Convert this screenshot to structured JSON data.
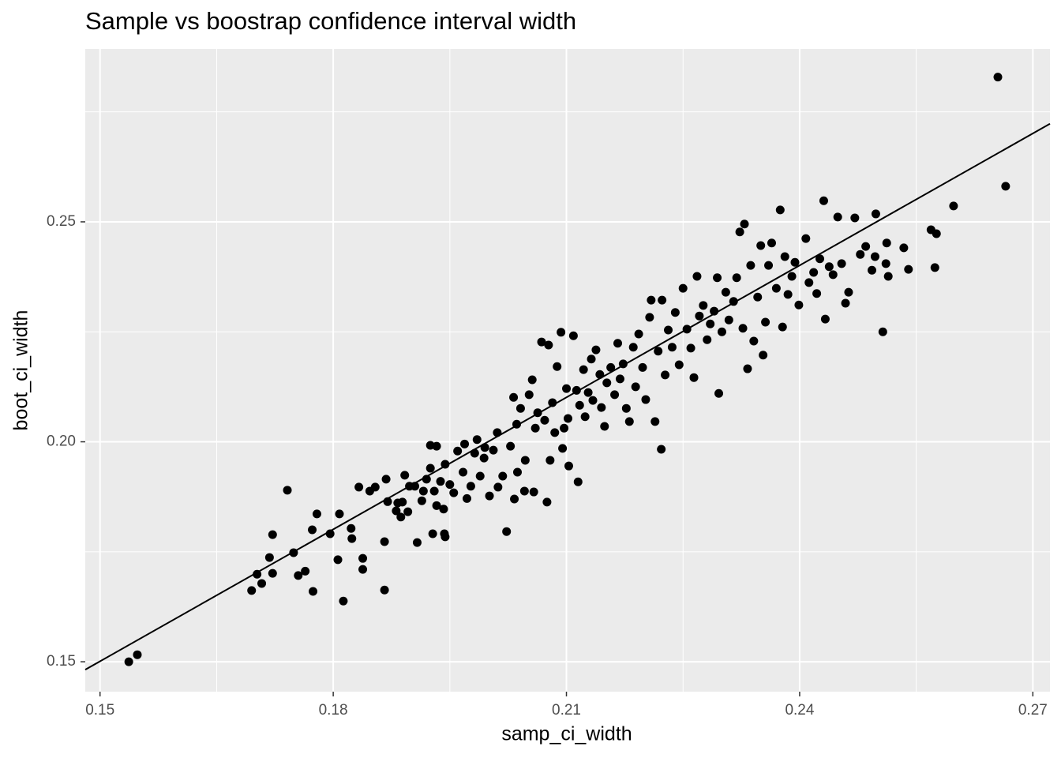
{
  "chart_data": {
    "type": "scatter",
    "title": "Sample vs boostrap confidence interval width",
    "x_label": "samp_ci_width",
    "y_label": "boot_ci_width",
    "x": [
      0.1537,
      0.1548,
      0.1695,
      0.1702,
      0.1708,
      0.1718,
      0.1722,
      0.1722,
      0.1741,
      0.1749,
      0.1755,
      0.1764,
      0.1773,
      0.1774,
      0.1779,
      0.1796,
      0.1806,
      0.1808,
      0.1813,
      0.1823,
      0.1824,
      0.1833,
      0.1838,
      0.1838,
      0.1847,
      0.1854,
      0.1866,
      0.1866,
      0.1868,
      0.187,
      0.1881,
      0.1883,
      0.1887,
      0.1889,
      0.1892,
      0.1896,
      0.1898,
      0.1905,
      0.1908,
      0.1914,
      0.1916,
      0.192,
      0.1925,
      0.1925,
      0.1928,
      0.193,
      0.1933,
      0.1933,
      0.1938,
      0.1942,
      0.1943,
      0.1944,
      0.1944,
      0.195,
      0.1955,
      0.196,
      0.1967,
      0.1969,
      0.1972,
      0.1977,
      0.1982,
      0.1985,
      0.1989,
      0.1994,
      0.1995,
      0.2001,
      0.2006,
      0.2011,
      0.2012,
      0.2018,
      0.2023,
      0.2028,
      0.2032,
      0.2033,
      0.2036,
      0.2037,
      0.2041,
      0.2046,
      0.2047,
      0.2052,
      0.2056,
      0.2058,
      0.206,
      0.2063,
      0.2068,
      0.2072,
      0.2075,
      0.2077,
      0.2079,
      0.2082,
      0.2085,
      0.2088,
      0.2093,
      0.2095,
      0.2097,
      0.21,
      0.2102,
      0.2103,
      0.2109,
      0.2113,
      0.2115,
      0.2117,
      0.2122,
      0.2124,
      0.2128,
      0.2132,
      0.2134,
      0.2138,
      0.2143,
      0.2145,
      0.2149,
      0.2152,
      0.2157,
      0.2162,
      0.2166,
      0.2169,
      0.2173,
      0.2177,
      0.2181,
      0.2186,
      0.2189,
      0.2193,
      0.2198,
      0.2202,
      0.2207,
      0.2209,
      0.2214,
      0.2218,
      0.2222,
      0.2223,
      0.2227,
      0.2231,
      0.2236,
      0.224,
      0.2245,
      0.225,
      0.2255,
      0.226,
      0.2264,
      0.2268,
      0.2271,
      0.2276,
      0.2281,
      0.2285,
      0.229,
      0.2294,
      0.2296,
      0.23,
      0.2305,
      0.2309,
      0.2315,
      0.2319,
      0.2323,
      0.2327,
      0.2329,
      0.2333,
      0.2337,
      0.2341,
      0.2346,
      0.235,
      0.2353,
      0.2356,
      0.236,
      0.2364,
      0.237,
      0.2375,
      0.2378,
      0.2381,
      0.2385,
      0.239,
      0.2394,
      0.2399,
      0.2408,
      0.2412,
      0.2418,
      0.2422,
      0.2426,
      0.2431,
      0.2433,
      0.2438,
      0.2443,
      0.2449,
      0.2454,
      0.2459,
      0.2463,
      0.2471,
      0.2478,
      0.2485,
      0.2493,
      0.2497,
      0.2498,
      0.2507,
      0.2511,
      0.2512,
      0.2514,
      0.2534,
      0.254,
      0.2569,
      0.2574,
      0.2576,
      0.2598,
      0.2655,
      0.2665
    ],
    "values": [
      0.15,
      0.1516,
      0.1662,
      0.1699,
      0.1678,
      0.1737,
      0.1789,
      0.1701,
      0.189,
      0.1748,
      0.1696,
      0.1706,
      0.18,
      0.166,
      0.1836,
      0.1791,
      0.1732,
      0.1836,
      0.1638,
      0.1803,
      0.178,
      0.1897,
      0.1735,
      0.171,
      0.1888,
      0.1897,
      0.1663,
      0.1773,
      0.1915,
      0.1864,
      0.1843,
      0.1861,
      0.1829,
      0.1863,
      0.1924,
      0.1841,
      0.1899,
      0.1899,
      0.1771,
      0.1866,
      0.1888,
      0.1915,
      0.194,
      0.1992,
      0.1791,
      0.1888,
      0.1855,
      0.199,
      0.191,
      0.1847,
      0.1791,
      0.1784,
      0.1949,
      0.1903,
      0.1884,
      0.1979,
      0.1931,
      0.1995,
      0.1871,
      0.1899,
      0.1974,
      0.2005,
      0.1922,
      0.1963,
      0.1987,
      0.1877,
      0.1981,
      0.2021,
      0.1897,
      0.1922,
      0.1796,
      0.199,
      0.2101,
      0.187,
      0.204,
      0.1931,
      0.2076,
      0.1888,
      0.1958,
      0.2107,
      0.2141,
      0.1886,
      0.2031,
      0.2066,
      0.2227,
      0.2049,
      0.1863,
      0.222,
      0.1958,
      0.2089,
      0.2021,
      0.2171,
      0.2249,
      0.1985,
      0.2031,
      0.2121,
      0.2053,
      0.1945,
      0.2241,
      0.2117,
      0.1909,
      0.2083,
      0.2164,
      0.2057,
      0.2112,
      0.2188,
      0.2094,
      0.2209,
      0.2153,
      0.2078,
      0.2035,
      0.2134,
      0.2169,
      0.2107,
      0.2224,
      0.2143,
      0.2177,
      0.2076,
      0.2046,
      0.2215,
      0.2125,
      0.2245,
      0.2169,
      0.2096,
      0.2283,
      0.2322,
      0.2046,
      0.2206,
      0.1983,
      0.2322,
      0.2152,
      0.2254,
      0.2215,
      0.2294,
      0.2175,
      0.2349,
      0.2256,
      0.2213,
      0.2146,
      0.2376,
      0.2286,
      0.231,
      0.2232,
      0.2268,
      0.2297,
      0.2373,
      0.211,
      0.225,
      0.234,
      0.2277,
      0.2319,
      0.2373,
      0.2477,
      0.2258,
      0.2495,
      0.2166,
      0.2401,
      0.2229,
      0.2329,
      0.2446,
      0.2197,
      0.2272,
      0.2401,
      0.2452,
      0.2349,
      0.2527,
      0.2261,
      0.2421,
      0.2335,
      0.2376,
      0.2408,
      0.2311,
      0.2462,
      0.2362,
      0.2385,
      0.2337,
      0.2416,
      0.2548,
      0.2279,
      0.2398,
      0.238,
      0.2511,
      0.2405,
      0.2315,
      0.234,
      0.2509,
      0.2426,
      0.2444,
      0.239,
      0.2421,
      0.2518,
      0.225,
      0.2405,
      0.2452,
      0.2376,
      0.2441,
      0.2392,
      0.2482,
      0.2396,
      0.2473,
      0.2536,
      0.2829,
      0.2581
    ],
    "color": "#000000",
    "line": {
      "x": [
        0.1481,
        0.2722
      ],
      "values": [
        0.1482,
        0.2723
      ],
      "color": "#000000"
    },
    "xlim": [
      0.1481,
      0.2722
    ],
    "ylim": [
      0.1432,
      0.2893
    ],
    "xticks": [
      0.15,
      0.18,
      0.21,
      0.24,
      0.27
    ],
    "yticks": [
      0.15,
      {
        "value": 0.2,
        "label": "0.20"
      },
      0.25
    ],
    "grid": true,
    "minor_grid": true
  }
}
